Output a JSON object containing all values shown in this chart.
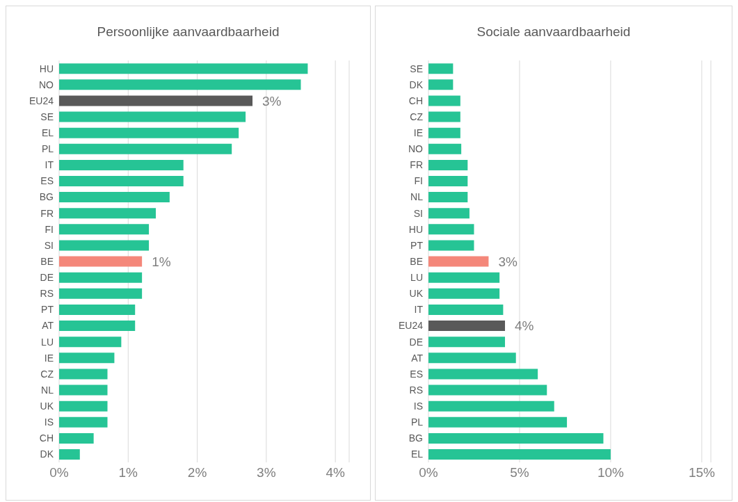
{
  "chart_data": [
    {
      "type": "bar",
      "orientation": "horizontal",
      "title": "Persoonlijke aanvaardbaarheid",
      "categories": [
        "HU",
        "NO",
        "EU24",
        "SE",
        "EL",
        "PL",
        "IT",
        "ES",
        "BG",
        "FR",
        "FI",
        "SI",
        "BE",
        "DE",
        "RS",
        "PT",
        "AT",
        "LU",
        "IE",
        "CZ",
        "NL",
        "UK",
        "IS",
        "CH",
        "DK"
      ],
      "values": [
        3.6,
        3.5,
        2.8,
        2.7,
        2.6,
        2.5,
        1.8,
        1.8,
        1.6,
        1.4,
        1.3,
        1.3,
        1.2,
        1.2,
        1.2,
        1.1,
        1.1,
        0.9,
        0.8,
        0.7,
        0.7,
        0.7,
        0.7,
        0.5,
        0.3
      ],
      "colors": [
        "#26c495",
        "#26c495",
        "#595959",
        "#26c495",
        "#26c495",
        "#26c495",
        "#26c495",
        "#26c495",
        "#26c495",
        "#26c495",
        "#26c495",
        "#26c495",
        "#f4877a",
        "#26c495",
        "#26c495",
        "#26c495",
        "#26c495",
        "#26c495",
        "#26c495",
        "#26c495",
        "#26c495",
        "#26c495",
        "#26c495",
        "#26c495",
        "#26c495"
      ],
      "value_labels": [
        null,
        null,
        "3%",
        null,
        null,
        null,
        null,
        null,
        null,
        null,
        null,
        null,
        "1%",
        null,
        null,
        null,
        null,
        null,
        null,
        null,
        null,
        null,
        null,
        null,
        null
      ],
      "xlim": [
        0,
        4.2
      ],
      "xticks": [
        {
          "value": 0,
          "label": "0%"
        },
        {
          "value": 1,
          "label": "1%"
        },
        {
          "value": 2,
          "label": "2%"
        },
        {
          "value": 3,
          "label": "3%"
        },
        {
          "value": 4,
          "label": "4%"
        }
      ],
      "grid": "x",
      "legend": false
    },
    {
      "type": "bar",
      "orientation": "horizontal",
      "title": "Sociale aanvaardbaarheid",
      "categories": [
        "SE",
        "DK",
        "CH",
        "CZ",
        "IE",
        "NO",
        "FR",
        "FI",
        "NL",
        "SI",
        "HU",
        "PT",
        "BE",
        "LU",
        "UK",
        "IT",
        "EU24",
        "DE",
        "AT",
        "ES",
        "RS",
        "IS",
        "PL",
        "BG",
        "EL"
      ],
      "values": [
        1.35,
        1.35,
        1.75,
        1.75,
        1.75,
        1.8,
        2.15,
        2.15,
        2.15,
        2.25,
        2.5,
        2.5,
        3.3,
        3.9,
        3.9,
        4.1,
        4.2,
        4.2,
        4.8,
        6.0,
        6.5,
        6.9,
        7.6,
        9.6,
        10.0
      ],
      "colors": [
        "#26c495",
        "#26c495",
        "#26c495",
        "#26c495",
        "#26c495",
        "#26c495",
        "#26c495",
        "#26c495",
        "#26c495",
        "#26c495",
        "#26c495",
        "#26c495",
        "#f4877a",
        "#26c495",
        "#26c495",
        "#26c495",
        "#595959",
        "#26c495",
        "#26c495",
        "#26c495",
        "#26c495",
        "#26c495",
        "#26c495",
        "#26c495",
        "#26c495"
      ],
      "value_labels": [
        null,
        null,
        null,
        null,
        null,
        null,
        null,
        null,
        null,
        null,
        null,
        null,
        "3%",
        null,
        null,
        null,
        "4%",
        null,
        null,
        null,
        null,
        null,
        null,
        null,
        null
      ],
      "xlim": [
        0,
        15.5
      ],
      "xticks": [
        {
          "value": 0,
          "label": "0%"
        },
        {
          "value": 5,
          "label": "5%"
        },
        {
          "value": 10,
          "label": "10%"
        },
        {
          "value": 15,
          "label": "15%"
        }
      ],
      "grid": "x",
      "legend": false
    }
  ]
}
